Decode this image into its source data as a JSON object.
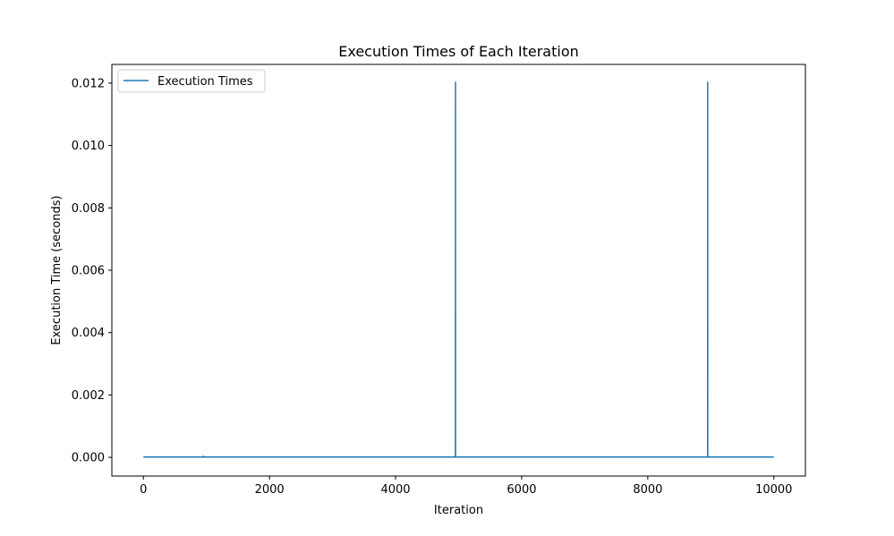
{
  "chart_data": {
    "type": "line",
    "title": "Execution Times of Each Iteration",
    "xlabel": "Iteration",
    "ylabel": "Execution Time (seconds)",
    "xlim": [
      -500,
      10500
    ],
    "ylim": [
      -0.0006,
      0.0126
    ],
    "x_ticks": [
      0,
      2000,
      4000,
      6000,
      8000,
      10000
    ],
    "x_tick_labels": [
      "0",
      "2000",
      "4000",
      "6000",
      "8000",
      "10000"
    ],
    "y_ticks": [
      0.0,
      0.002,
      0.004,
      0.006,
      0.008,
      0.01,
      0.012
    ],
    "y_tick_labels": [
      "0.000",
      "0.002",
      "0.004",
      "0.006",
      "0.008",
      "0.010",
      "0.012"
    ],
    "grid": false,
    "legend_position": "top-left",
    "series": [
      {
        "name": "Execution Times",
        "color": "#1f77b4",
        "x": [
          0,
          950,
          951,
          952,
          4949,
          4950,
          4951,
          8949,
          8950,
          8951,
          10000
        ],
        "y": [
          1e-05,
          1e-05,
          4e-05,
          1e-05,
          1e-05,
          0.01203,
          1e-05,
          1e-05,
          0.01203,
          1e-05,
          1e-05
        ]
      }
    ]
  }
}
